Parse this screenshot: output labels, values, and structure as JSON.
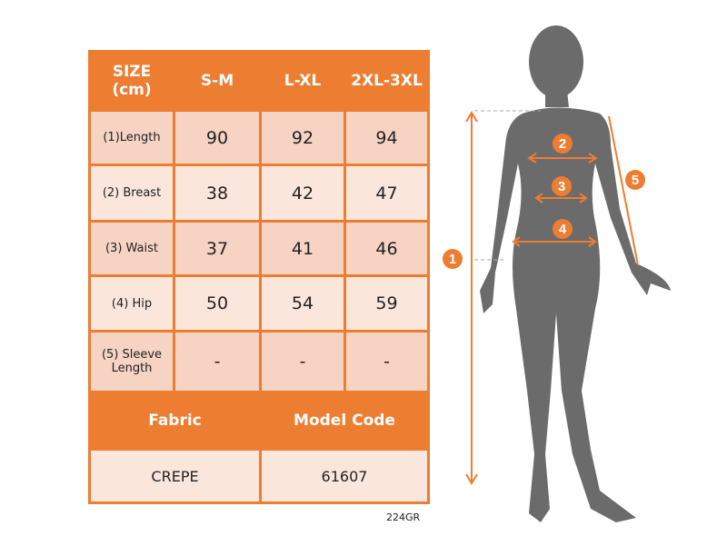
{
  "table": {
    "header": [
      "SIZE\n(cm)",
      "S-M",
      "L-XL",
      "2XL-3XL"
    ],
    "header_line1": "SIZE",
    "header_line2": "(cm)",
    "rows": [
      {
        "label": "(1)Length",
        "values": [
          "90",
          "92",
          "94"
        ]
      },
      {
        "label": "(2) Breast",
        "values": [
          "38",
          "42",
          "47"
        ]
      },
      {
        "label": "(3) Waist",
        "values": [
          "37",
          "41",
          "46"
        ]
      },
      {
        "label": "(4) Hip",
        "values": [
          "50",
          "54",
          "59"
        ]
      },
      {
        "label_line1": "(5) Sleeve",
        "label_line2": "Length",
        "values": [
          "-",
          "-",
          "-"
        ]
      }
    ],
    "fabric_header": "Fabric",
    "model_code_header": "Model Code",
    "fabric_value": "CREPE",
    "model_code_value": "61607"
  },
  "product_code": "224GR",
  "figure": {
    "markers": [
      "1",
      "2",
      "3",
      "4",
      "5"
    ]
  },
  "colors": {
    "accent": "#ED7D31",
    "cell_dark": "#F6D3C3",
    "cell_light": "#FBE6DC",
    "silhouette": "#6B6B6B"
  }
}
